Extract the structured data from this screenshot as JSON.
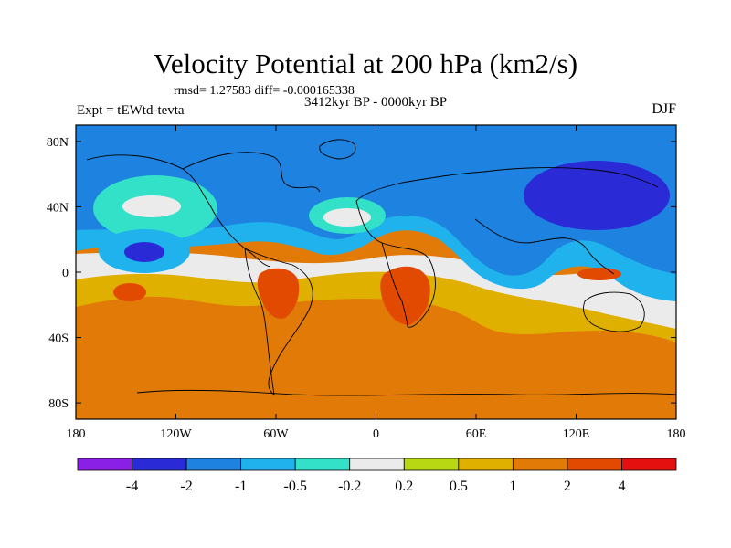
{
  "title": "Velocity Potential at 200 hPa (km2/s)",
  "stats": "rmsd= 1.27583 diff= -0.000165338",
  "period": "3412kyr BP - 0000kyr BP",
  "experiment": "Expt = tEWtd-tevta",
  "season": "DJF",
  "map": {
    "lon_labels": [
      "180",
      "120W",
      "60W",
      "0",
      "60E",
      "120E",
      "180"
    ],
    "lat_labels": [
      "80N",
      "40N",
      "0",
      "40S",
      "80S"
    ],
    "lon_ticks": [
      -180,
      -120,
      -60,
      0,
      60,
      120,
      180
    ],
    "lat_ticks": [
      80,
      40,
      0,
      -40,
      -80
    ]
  },
  "colorbar": {
    "labels": [
      "-4",
      "-2",
      "-1",
      "-0.5",
      "-0.2",
      "0.2",
      "0.5",
      "1",
      "2",
      "4"
    ],
    "colors": [
      "#8a1fe6",
      "#2a2ad6",
      "#1e82e0",
      "#1fb2ec",
      "#33e0c8",
      "#ebebeb",
      "#b8d814",
      "#e0b000",
      "#e27a08",
      "#e24a02",
      "#e41010"
    ]
  },
  "colors": {
    "very_negative": "#2a2ad6",
    "negative": "#1e82e0",
    "light_negative": "#1fb2ec",
    "slight_negative": "#33e0c8",
    "neutral": "#ebebeb",
    "slight_positive": "#b8d814",
    "light_positive": "#e0b000",
    "positive": "#e27a08",
    "very_positive": "#e24a02"
  }
}
